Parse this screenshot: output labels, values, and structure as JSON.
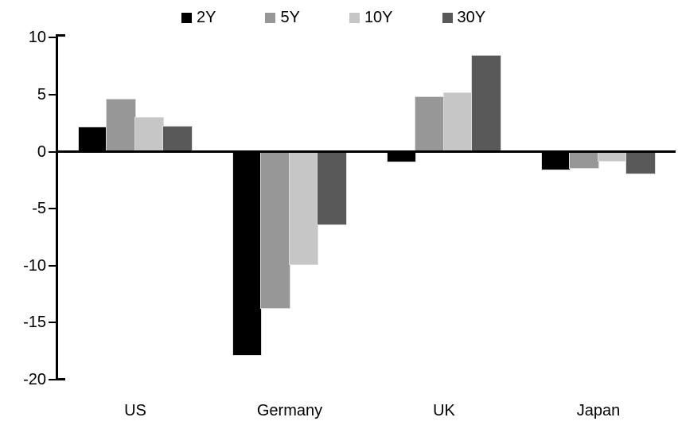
{
  "chart_data": {
    "type": "bar",
    "title": "",
    "categories": [
      "US",
      "Germany",
      "UK",
      "Japan"
    ],
    "series": [
      {
        "name": "2Y",
        "color": "#000000",
        "values": [
          2.1,
          -17.8,
          -0.9,
          -1.6
        ]
      },
      {
        "name": "5Y",
        "color": "#979797",
        "values": [
          4.6,
          -13.7,
          4.8,
          -1.4
        ]
      },
      {
        "name": "10Y",
        "color": "#c6c6c6",
        "values": [
          3.0,
          -9.9,
          5.1,
          -0.8
        ]
      },
      {
        "name": "30Y",
        "color": "#595959",
        "values": [
          2.2,
          -6.4,
          8.4,
          -1.9
        ]
      }
    ],
    "ylim": [
      -20,
      10
    ],
    "yticks": [
      10,
      5,
      0,
      -5,
      -10,
      -15,
      -20
    ],
    "xlabel": "",
    "ylabel": "",
    "legend_position": "top",
    "grid": false,
    "axis_color": "#000000",
    "background_color": "#ffffff"
  }
}
